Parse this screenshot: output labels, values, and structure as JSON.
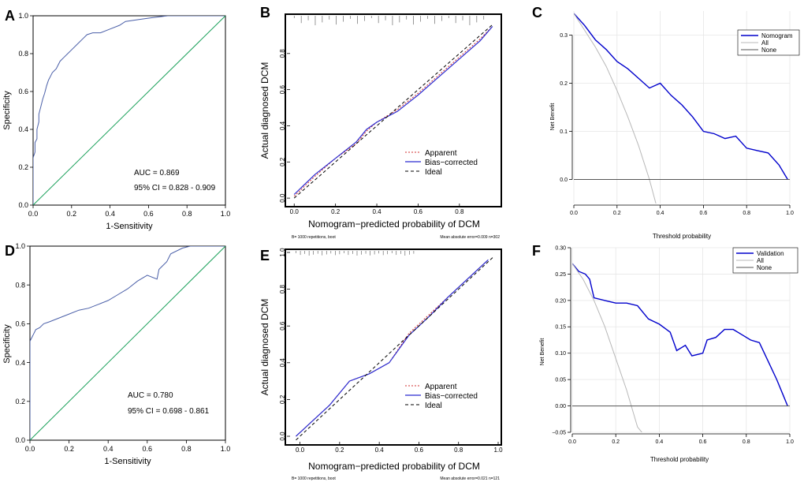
{
  "colors": {
    "roc": "#4a5fa8",
    "diag": "#1aa05a",
    "bias": "#2a2ad0",
    "apparent": "#d03030",
    "ideal": "#000000",
    "dca": "#0000cc",
    "all": "#b8b8b8",
    "none": "#555555",
    "grid": "#e6e6e6"
  },
  "chart_data": [
    {
      "panel": "A",
      "type": "line",
      "title": "",
      "xlabel": "1-Sensitivity",
      "ylabel": "Specificity",
      "xlim": [
        0,
        1
      ],
      "ylim": [
        0,
        1
      ],
      "xticks": [
        "0.0",
        "0.2",
        "0.4",
        "0.6",
        "0.8",
        "1.0"
      ],
      "yticks": [
        "0.0",
        "0.2",
        "0.4",
        "0.6",
        "0.8",
        "1.0"
      ],
      "annotations": [
        "AUC = 0.869",
        "95% CI = 0.828 - 0.909"
      ],
      "series": [
        {
          "name": "ROC",
          "x": [
            0,
            0,
            0.01,
            0.01,
            0.02,
            0.02,
            0.03,
            0.03,
            0.04,
            0.05,
            0.06,
            0.07,
            0.08,
            0.09,
            0.1,
            0.12,
            0.14,
            0.16,
            0.18,
            0.2,
            0.23,
            0.26,
            0.28,
            0.31,
            0.35,
            0.4,
            0.45,
            0.48,
            0.55,
            0.62,
            0.7,
            0.8,
            0.9,
            1.0
          ],
          "y": [
            0,
            0.25,
            0.28,
            0.33,
            0.35,
            0.4,
            0.44,
            0.48,
            0.52,
            0.56,
            0.59,
            0.63,
            0.66,
            0.68,
            0.7,
            0.72,
            0.76,
            0.78,
            0.8,
            0.82,
            0.85,
            0.88,
            0.9,
            0.91,
            0.91,
            0.93,
            0.95,
            0.97,
            0.98,
            0.99,
            1.0,
            1.0,
            1.0,
            1.0
          ]
        },
        {
          "name": "Reference",
          "x": [
            0,
            1
          ],
          "y": [
            0,
            1
          ]
        }
      ]
    },
    {
      "panel": "B",
      "type": "line",
      "title": "",
      "xlabel": "Nomogram−predicted probability of DCM",
      "ylabel": "Actual diagnosed DCM",
      "xlim": [
        -0.02,
        0.98
      ],
      "ylim": [
        -0.03,
        1.0
      ],
      "xticks": [
        "0.0",
        "0.2",
        "0.4",
        "0.6",
        "0.8"
      ],
      "yticks": [
        "0.0",
        "0.2",
        "0.4",
        "0.6",
        "0.8"
      ],
      "legend": [
        "Apparent",
        "Bias−corrected",
        "Ideal"
      ],
      "footnote_left": "B= 1000 repetitions, boot",
      "footnote_right": "Mean absolute error=0.009 n=302",
      "series": [
        {
          "name": "Apparent",
          "x": [
            0,
            0.1,
            0.2,
            0.3,
            0.35,
            0.4,
            0.5,
            0.6,
            0.7,
            0.8,
            0.9,
            0.96
          ],
          "y": [
            0.01,
            0.12,
            0.22,
            0.3,
            0.37,
            0.42,
            0.49,
            0.58,
            0.68,
            0.78,
            0.88,
            0.95
          ]
        },
        {
          "name": "Bias−corrected",
          "x": [
            0,
            0.1,
            0.2,
            0.3,
            0.35,
            0.4,
            0.5,
            0.6,
            0.7,
            0.8,
            0.9,
            0.96
          ],
          "y": [
            0.02,
            0.13,
            0.22,
            0.31,
            0.38,
            0.42,
            0.48,
            0.57,
            0.67,
            0.77,
            0.87,
            0.95
          ]
        },
        {
          "name": "Ideal",
          "x": [
            0,
            0.96
          ],
          "y": [
            0,
            0.96
          ]
        }
      ]
    },
    {
      "panel": "C",
      "type": "line",
      "title": "",
      "xlabel": "Threshold probability",
      "ylabel": "Net Benefit",
      "xlim": [
        0,
        1
      ],
      "ylim": [
        -0.05,
        0.35
      ],
      "xticks": [
        "0.0",
        "0.2",
        "0.4",
        "0.6",
        "0.8",
        "1.0"
      ],
      "yticks": [
        "0.0",
        "0.1",
        "0.2",
        "0.3"
      ],
      "legend": [
        "Nomogram",
        "All",
        "None"
      ],
      "series": [
        {
          "name": "Nomogram",
          "x": [
            0,
            0.05,
            0.1,
            0.15,
            0.2,
            0.25,
            0.3,
            0.35,
            0.4,
            0.45,
            0.5,
            0.55,
            0.6,
            0.65,
            0.7,
            0.75,
            0.8,
            0.85,
            0.9,
            0.95,
            0.99
          ],
          "y": [
            0.345,
            0.32,
            0.29,
            0.27,
            0.245,
            0.23,
            0.21,
            0.19,
            0.2,
            0.175,
            0.155,
            0.13,
            0.1,
            0.095,
            0.085,
            0.09,
            0.065,
            0.06,
            0.055,
            0.03,
            0.0
          ]
        },
        {
          "name": "All",
          "x": [
            0,
            0.05,
            0.1,
            0.15,
            0.2,
            0.25,
            0.3,
            0.35,
            0.38
          ],
          "y": [
            0.345,
            0.31,
            0.275,
            0.235,
            0.185,
            0.13,
            0.07,
            0.0,
            -0.05
          ]
        },
        {
          "name": "None",
          "x": [
            0,
            1
          ],
          "y": [
            0,
            0
          ]
        }
      ]
    },
    {
      "panel": "D",
      "type": "line",
      "title": "",
      "xlabel": "1-Sensitivity",
      "ylabel": "Specificity",
      "xlim": [
        0,
        1
      ],
      "ylim": [
        0,
        1
      ],
      "xticks": [
        "0.0",
        "0.2",
        "0.4",
        "0.6",
        "0.8",
        "1.0"
      ],
      "yticks": [
        "0.0",
        "0.2",
        "0.4",
        "0.6",
        "0.8",
        "1.0"
      ],
      "annotations": [
        "AUC = 0.780",
        "95% CI = 0.698 - 0.861"
      ],
      "series": [
        {
          "name": "ROC",
          "x": [
            0,
            0,
            0.01,
            0.02,
            0.03,
            0.05,
            0.07,
            0.1,
            0.15,
            0.2,
            0.25,
            0.3,
            0.35,
            0.4,
            0.45,
            0.5,
            0.55,
            0.6,
            0.65,
            0.66,
            0.68,
            0.7,
            0.72,
            0.78,
            0.82,
            0.88,
            0.95,
            1.0
          ],
          "y": [
            0,
            0.51,
            0.53,
            0.55,
            0.57,
            0.58,
            0.6,
            0.61,
            0.63,
            0.65,
            0.67,
            0.68,
            0.7,
            0.72,
            0.75,
            0.78,
            0.82,
            0.85,
            0.83,
            0.88,
            0.9,
            0.92,
            0.96,
            0.99,
            1.0,
            1.0,
            1.0,
            1.0
          ]
        },
        {
          "name": "Reference",
          "x": [
            0,
            1
          ],
          "y": [
            0,
            1
          ]
        }
      ]
    },
    {
      "panel": "E",
      "type": "line",
      "title": "",
      "xlabel": "Nomogram−predicted probability of DCM",
      "ylabel": "Actual diagnosed DCM",
      "xlim": [
        -0.05,
        1.0
      ],
      "ylim": [
        -0.03,
        1.0
      ],
      "xticks": [
        "0.0",
        "0.2",
        "0.4",
        "0.6",
        "0.8",
        "1.0"
      ],
      "yticks": [
        "0.0",
        "0.2",
        "0.4",
        "0.6",
        "0.8",
        "1.0"
      ],
      "legend": [
        "Apparent",
        "Bias−corrected",
        "Ideal"
      ],
      "footnote_left": "B= 1000 repetitions, boot",
      "footnote_right": "Mean absolute error=0.021 n=121",
      "series": [
        {
          "name": "Apparent",
          "x": [
            -0.02,
            0.05,
            0.15,
            0.25,
            0.3,
            0.35,
            0.45,
            0.55,
            0.65,
            0.75,
            0.85,
            0.95
          ],
          "y": [
            0.0,
            0.07,
            0.17,
            0.3,
            0.32,
            0.34,
            0.4,
            0.56,
            0.66,
            0.76,
            0.86,
            0.96
          ]
        },
        {
          "name": "Bias−corrected",
          "x": [
            -0.02,
            0.05,
            0.15,
            0.25,
            0.3,
            0.35,
            0.45,
            0.55,
            0.65,
            0.75,
            0.85,
            0.95
          ],
          "y": [
            0.0,
            0.07,
            0.17,
            0.3,
            0.32,
            0.34,
            0.4,
            0.55,
            0.65,
            0.76,
            0.86,
            0.96
          ]
        },
        {
          "name": "Ideal",
          "x": [
            -0.02,
            0.98
          ],
          "y": [
            -0.02,
            0.98
          ]
        }
      ]
    },
    {
      "panel": "F",
      "type": "line",
      "title": "",
      "xlabel": "Threshold probability",
      "ylabel": "Net Benefit",
      "xlim": [
        0,
        1
      ],
      "ylim": [
        -0.05,
        0.3
      ],
      "xticks": [
        "0.0",
        "0.2",
        "0.4",
        "0.6",
        "0.8",
        "1.0"
      ],
      "yticks": [
        "−0.05",
        "0.00",
        "0.05",
        "0.10",
        "0.15",
        "0.20",
        "0.25",
        "0.30"
      ],
      "legend": [
        "Validation",
        "All",
        "None"
      ],
      "series": [
        {
          "name": "Validation",
          "x": [
            0,
            0.03,
            0.06,
            0.08,
            0.1,
            0.15,
            0.2,
            0.25,
            0.3,
            0.35,
            0.4,
            0.45,
            0.48,
            0.52,
            0.55,
            0.6,
            0.62,
            0.66,
            0.7,
            0.74,
            0.78,
            0.82,
            0.86,
            0.9,
            0.94,
            0.97,
            0.99
          ],
          "y": [
            0.27,
            0.255,
            0.25,
            0.24,
            0.205,
            0.2,
            0.195,
            0.195,
            0.19,
            0.165,
            0.155,
            0.14,
            0.105,
            0.115,
            0.095,
            0.1,
            0.125,
            0.13,
            0.145,
            0.145,
            0.135,
            0.125,
            0.12,
            0.085,
            0.05,
            0.02,
            0.0
          ]
        },
        {
          "name": "All",
          "x": [
            0,
            0.05,
            0.1,
            0.15,
            0.2,
            0.25,
            0.3,
            0.32
          ],
          "y": [
            0.27,
            0.24,
            0.2,
            0.15,
            0.09,
            0.03,
            -0.04,
            -0.05
          ]
        },
        {
          "name": "None",
          "x": [
            0,
            1
          ],
          "y": [
            0,
            0
          ]
        }
      ]
    }
  ]
}
